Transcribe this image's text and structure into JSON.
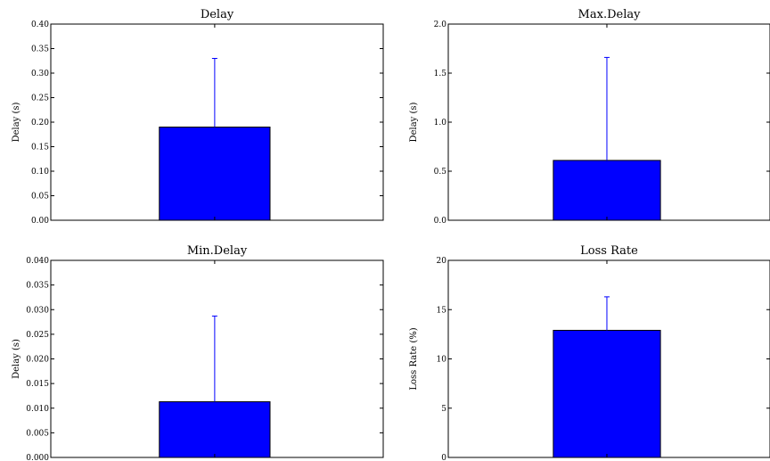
{
  "chart_data": [
    {
      "type": "bar",
      "title": "Delay",
      "xlabel": "",
      "ylabel": "Delay (s)",
      "ylim": [
        0,
        0.4
      ],
      "yticks": [
        "0.00",
        "0.05",
        "0.10",
        "0.15",
        "0.20",
        "0.25",
        "0.30",
        "0.35",
        "0.40"
      ],
      "values": [
        0.19
      ],
      "error_upper": [
        0.33
      ],
      "bar_color": "#0000ff",
      "grid": false,
      "legend": "none"
    },
    {
      "type": "bar",
      "title": "Max.Delay",
      "xlabel": "",
      "ylabel": "Delay (s)",
      "ylim": [
        0,
        2.0
      ],
      "yticks": [
        "0.0",
        "0.5",
        "1.0",
        "1.5",
        "2.0"
      ],
      "values": [
        0.61
      ],
      "error_upper": [
        1.66
      ],
      "bar_color": "#0000ff",
      "grid": false,
      "legend": "none"
    },
    {
      "type": "bar",
      "title": "Min.Delay",
      "xlabel": "",
      "ylabel": "Delay (s)",
      "ylim": [
        0,
        0.04
      ],
      "yticks": [
        "0.000",
        "0.005",
        "0.010",
        "0.015",
        "0.020",
        "0.025",
        "0.030",
        "0.035",
        "0.040"
      ],
      "values": [
        0.0113
      ],
      "error_upper": [
        0.0287
      ],
      "bar_color": "#0000ff",
      "grid": false,
      "legend": "none"
    },
    {
      "type": "bar",
      "title": "Loss Rate",
      "xlabel": "",
      "ylabel": "Loss Rate (%)",
      "ylim": [
        0,
        20
      ],
      "yticks": [
        "0",
        "5",
        "10",
        "15",
        "20"
      ],
      "values": [
        12.9
      ],
      "error_upper": [
        16.3
      ],
      "bar_color": "#0000ff",
      "grid": false,
      "legend": "none"
    }
  ]
}
